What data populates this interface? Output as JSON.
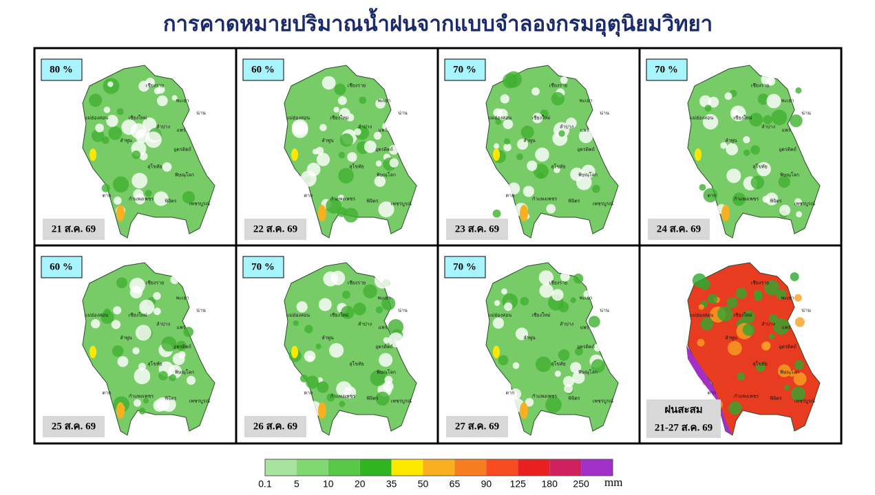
{
  "title": "การคาดหมายปริมาณน้ำฝนจากแบบจำลองกรมอุตุนิยมวิทยา",
  "provinces": [
    "เชียงราย",
    "พะเยา",
    "น่าน",
    "แม่ฮ่องสอน",
    "เชียงใหม่",
    "ลำปาง",
    "แพร่",
    "ลำพูน",
    "อุตรดิตถ์",
    "สุโขทัย",
    "พิษณุโลก",
    "ตาก",
    "กำแพงเพชร",
    "พิจิตร",
    "เพชรบูรณ์"
  ],
  "panels": [
    {
      "chance": "80 %",
      "date": "21 ส.ค. 69"
    },
    {
      "chance": "60 %",
      "date": "22 ส.ค. 69"
    },
    {
      "chance": "70 %",
      "date": "23 ส.ค. 69"
    },
    {
      "chance": "70 %",
      "date": "24 ส.ค. 69"
    },
    {
      "chance": "60 %",
      "date": "25 ส.ค. 69"
    },
    {
      "chance": "70 %",
      "date": "26 ส.ค. 69"
    },
    {
      "chance": "70 %",
      "date": "27 ส.ค. 69"
    },
    {
      "label": "ฝนสะสม",
      "date": "21-27 ส.ค. 69"
    }
  ],
  "legend": {
    "colors": [
      "#a8e4a0",
      "#80d870",
      "#58c848",
      "#30b420",
      "#ffe800",
      "#f8b020",
      "#f87c20",
      "#f84c20",
      "#e82020",
      "#d02060",
      "#a030c8"
    ],
    "ticks": [
      0.1,
      5,
      10,
      20,
      35,
      50,
      65,
      90,
      125,
      180,
      250
    ],
    "unit": "mm"
  }
}
